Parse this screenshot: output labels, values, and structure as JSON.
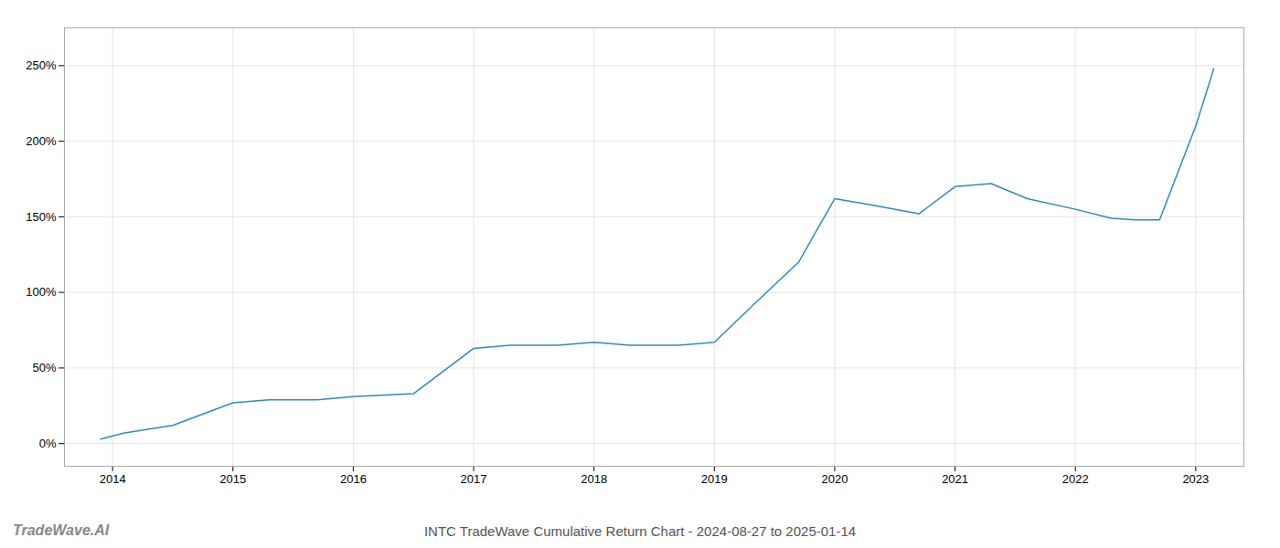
{
  "chart_data": {
    "type": "line",
    "title": "INTC TradeWave Cumulative Return Chart - 2024-08-27 to 2025-01-14",
    "annotations": [
      "TradeWave.AI"
    ],
    "x": [
      2013.9,
      2014.1,
      2014.5,
      2015.0,
      2015.3,
      2015.7,
      2016.0,
      2016.5,
      2017.0,
      2017.3,
      2017.7,
      2018.0,
      2018.3,
      2018.7,
      2019.0,
      2019.3,
      2019.7,
      2020.0,
      2020.3,
      2020.7,
      2021.0,
      2021.3,
      2021.6,
      2022.0,
      2022.3,
      2022.5,
      2022.7,
      2023.0,
      2023.15
    ],
    "values": [
      3,
      7,
      12,
      27,
      29,
      29,
      31,
      33,
      63,
      65,
      65,
      67,
      65,
      65,
      67,
      90,
      120,
      162,
      158,
      152,
      170,
      172,
      162,
      155,
      149,
      148,
      148,
      210,
      248
    ],
    "color": "#2e8bc0",
    "xlim": [
      2013.6,
      2023.4
    ],
    "xticks": [
      2014,
      2015,
      2016,
      2017,
      2018,
      2019,
      2020,
      2021,
      2022,
      2023
    ],
    "ylim": [
      -15,
      275
    ],
    "yticks": [
      {
        "value": 0,
        "label": "0%"
      },
      {
        "value": 50,
        "label": "50%"
      },
      {
        "value": 100,
        "label": "100%"
      },
      {
        "value": 150,
        "label": "150%"
      },
      {
        "value": 200,
        "label": "200%"
      },
      {
        "value": 250,
        "label": "250%"
      }
    ],
    "grid": true
  }
}
